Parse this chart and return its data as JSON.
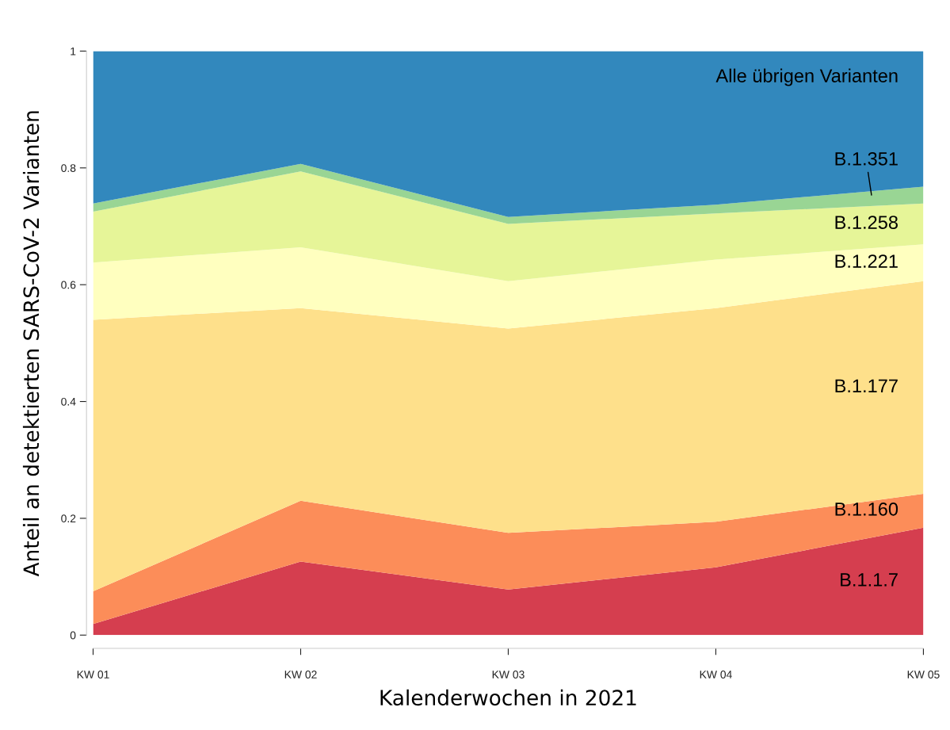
{
  "chart_data": {
    "type": "area",
    "stacked": true,
    "xlabel": "Kalenderwochen in 2021",
    "ylabel": "Anteil an detektierten SARS-CoV-2 Varianten",
    "categories": [
      "KW 01",
      "KW 02",
      "KW 03",
      "KW 04",
      "KW 05"
    ],
    "series": [
      {
        "name": "B.1.1.7",
        "color": "#d53e4f",
        "values": [
          0.019,
          0.126,
          0.078,
          0.116,
          0.184
        ]
      },
      {
        "name": "B.1.160",
        "color": "#fc8d59",
        "values": [
          0.056,
          0.104,
          0.097,
          0.078,
          0.058
        ]
      },
      {
        "name": "B.1.177",
        "color": "#fee08b",
        "values": [
          0.465,
          0.33,
          0.35,
          0.366,
          0.364
        ]
      },
      {
        "name": "B.1.221",
        "color": "#ffffbf",
        "values": [
          0.098,
          0.104,
          0.081,
          0.083,
          0.063
        ]
      },
      {
        "name": "B.1.258",
        "color": "#e6f598",
        "values": [
          0.087,
          0.13,
          0.098,
          0.079,
          0.07
        ]
      },
      {
        "name": "B.1.351",
        "color": "#99d594",
        "values": [
          0.014,
          0.013,
          0.012,
          0.015,
          0.029
        ]
      },
      {
        "name": "Alle übrigen Varianten",
        "color": "#3288bd",
        "values": [
          0.261,
          0.193,
          0.284,
          0.263,
          0.232
        ]
      }
    ],
    "ylim": [
      0,
      1
    ],
    "yticks": [
      0,
      0.2,
      0.4,
      0.6,
      0.8,
      1
    ],
    "grid": false,
    "legend": false
  }
}
